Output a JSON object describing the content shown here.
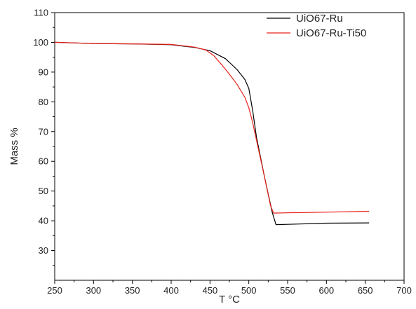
{
  "chart_data": {
    "type": "line",
    "title": "",
    "xlabel": "T °C",
    "ylabel": "Mass %",
    "xlim": [
      250,
      700
    ],
    "ylim": [
      20,
      110
    ],
    "xticks": [
      250,
      300,
      350,
      400,
      450,
      500,
      550,
      600,
      650,
      700
    ],
    "yticks": [
      30,
      40,
      50,
      60,
      70,
      80,
      90,
      100,
      110
    ],
    "grid": false,
    "legend_position": "top-right",
    "series": [
      {
        "name": "UiO67-Ru",
        "color": "#000000",
        "x": [
          250,
          300,
          350,
          400,
          430,
          450,
          470,
          485,
          495,
          500,
          505,
          510,
          520,
          530,
          535,
          550,
          600,
          655
        ],
        "y": [
          100,
          99.6,
          99.5,
          99.2,
          98.3,
          97.2,
          94.5,
          90.8,
          87.5,
          84.5,
          77,
          68,
          55,
          43,
          38.7,
          38.8,
          39.2,
          39.3
        ]
      },
      {
        "name": "UiO67-Ru-Ti50",
        "color": "#e8211a",
        "x": [
          250,
          300,
          350,
          400,
          430,
          445,
          455,
          465,
          475,
          485,
          495,
          500,
          505,
          510,
          520,
          528,
          532,
          550,
          600,
          655
        ],
        "y": [
          100,
          99.6,
          99.5,
          99.3,
          98.4,
          97.4,
          95.5,
          92.5,
          89.3,
          85.8,
          81.5,
          78,
          73,
          67,
          55,
          45,
          42.6,
          42.7,
          42.9,
          43.2
        ]
      }
    ]
  }
}
